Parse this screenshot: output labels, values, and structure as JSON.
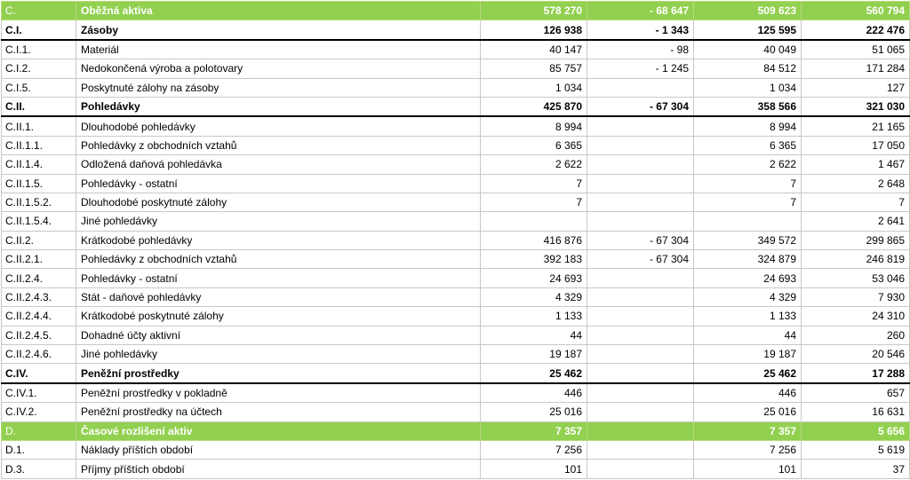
{
  "rows": [
    {
      "code": "C.",
      "name": "Oběžná aktiva",
      "v1": "578 270",
      "v2": "- 68 647",
      "v3": "509 623",
      "v4": "560 794",
      "style": "hl",
      "level": 1
    },
    {
      "code": "C.I.",
      "name": "Zásoby",
      "v1": "126 938",
      "v2": "- 1 343",
      "v3": "125 595",
      "v4": "222 476",
      "style": "bold",
      "level": 1
    },
    {
      "code": "C.I.1.",
      "name": "Materiál",
      "v1": "40 147",
      "v2": "- 98",
      "v3": "40 049",
      "v4": "51 065",
      "style": "",
      "level": 2
    },
    {
      "code": "C.I.2.",
      "name": "Nedokončená výroba a polotovary",
      "v1": "85 757",
      "v2": "- 1 245",
      "v3": "84 512",
      "v4": "171 284",
      "style": "",
      "level": 2
    },
    {
      "code": "C.I.5.",
      "name": "Poskytnuté zálohy na zásoby",
      "v1": "1 034",
      "v2": "",
      "v3": "1 034",
      "v4": "127",
      "style": "",
      "level": 2
    },
    {
      "code": "C.II.",
      "name": "Pohledávky",
      "v1": "425 870",
      "v2": "- 67 304",
      "v3": "358 566",
      "v4": "321 030",
      "style": "bold",
      "level": 1
    },
    {
      "code": "C.II.1.",
      "name": "Dlouhodobé pohledávky",
      "v1": "8 994",
      "v2": "",
      "v3": "8 994",
      "v4": "21 165",
      "style": "",
      "level": 2
    },
    {
      "code": "C.II.1.1.",
      "name": "Pohledávky z obchodních vztahů",
      "v1": "6 365",
      "v2": "",
      "v3": "6 365",
      "v4": "17 050",
      "style": "",
      "level": 3
    },
    {
      "code": "C.II.1.4.",
      "name": "Odložená daňová pohledávka",
      "v1": "2 622",
      "v2": "",
      "v3": "2 622",
      "v4": "1 467",
      "style": "",
      "level": 3
    },
    {
      "code": "C.II.1.5.",
      "name": "Pohledávky - ostatní",
      "v1": "7",
      "v2": "",
      "v3": "7",
      "v4": "2 648",
      "style": "",
      "level": 3
    },
    {
      "code": "C.II.1.5.2.",
      "name": "Dlouhodobé poskytnuté zálohy",
      "v1": "7",
      "v2": "",
      "v3": "7",
      "v4": "7",
      "style": "",
      "level": 4
    },
    {
      "code": "C.II.1.5.4.",
      "name": "Jiné pohledávky",
      "v1": "",
      "v2": "",
      "v3": "",
      "v4": "2 641",
      "style": "",
      "level": 4
    },
    {
      "code": "C.II.2.",
      "name": "Krátkodobé pohledávky",
      "v1": "416 876",
      "v2": "- 67 304",
      "v3": "349 572",
      "v4": "299 865",
      "style": "",
      "level": 2
    },
    {
      "code": "C.II.2.1.",
      "name": "Pohledávky z obchodních vztahů",
      "v1": "392 183",
      "v2": "- 67 304",
      "v3": "324 879",
      "v4": "246 819",
      "style": "",
      "level": 3
    },
    {
      "code": "C.II.2.4.",
      "name": "Pohledávky - ostatní",
      "v1": "24 693",
      "v2": "",
      "v3": "24 693",
      "v4": "53 046",
      "style": "",
      "level": 3
    },
    {
      "code": "C.II.2.4.3.",
      "name": "Stát - daňové pohledávky",
      "v1": "4 329",
      "v2": "",
      "v3": "4 329",
      "v4": "7 930",
      "style": "",
      "level": 4
    },
    {
      "code": "C.II.2.4.4.",
      "name": "Krátkodobé poskytnuté zálohy",
      "v1": "1 133",
      "v2": "",
      "v3": "1 133",
      "v4": "24 310",
      "style": "",
      "level": 4
    },
    {
      "code": "C.II.2.4.5.",
      "name": "Dohadné účty aktivní",
      "v1": "44",
      "v2": "",
      "v3": "44",
      "v4": "260",
      "style": "",
      "level": 4
    },
    {
      "code": "C.II.2.4.6.",
      "name": "Jiné pohledávky",
      "v1": "19 187",
      "v2": "",
      "v3": "19 187",
      "v4": "20 546",
      "style": "",
      "level": 4
    },
    {
      "code": "C.IV.",
      "name": "Peněžní prostředky",
      "v1": "25 462",
      "v2": "",
      "v3": "25 462",
      "v4": "17 288",
      "style": "bold",
      "level": 1
    },
    {
      "code": "C.IV.1.",
      "name": "Peněžní prostředky v pokladně",
      "v1": "446",
      "v2": "",
      "v3": "446",
      "v4": "657",
      "style": "",
      "level": 2
    },
    {
      "code": "C.IV.2.",
      "name": "Peněžní prostředky na účtech",
      "v1": "25 016",
      "v2": "",
      "v3": "25 016",
      "v4": "16 631",
      "style": "",
      "level": 2
    },
    {
      "code": "D.",
      "name": "Časové rozlišení aktiv",
      "v1": "7 357",
      "v2": "",
      "v3": "7 357",
      "v4": "5 656",
      "style": "hl",
      "level": 1
    },
    {
      "code": "D.1.",
      "name": "Náklady příštích období",
      "v1": "7 256",
      "v2": "",
      "v3": "7 256",
      "v4": "5 619",
      "style": "",
      "level": 2
    },
    {
      "code": "D.3.",
      "name": "Příjmy příštích období",
      "v1": "101",
      "v2": "",
      "v3": "101",
      "v4": "37",
      "style": "",
      "level": 2
    }
  ],
  "colors": {
    "highlight": "#92d050",
    "grid": "#c8c8c8"
  }
}
